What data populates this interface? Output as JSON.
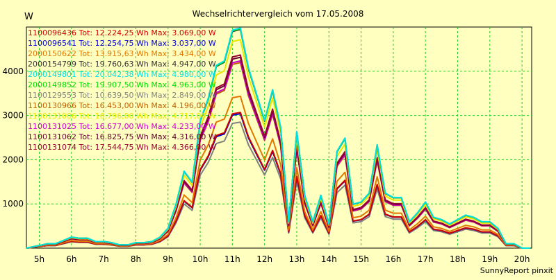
{
  "chart_data": {
    "type": "line",
    "title": "Wechselrichtervergleich vom 17.05.2008",
    "ylabel": "W",
    "xlabel": "",
    "credit": "SunnyReport pinxit",
    "grid": true,
    "legend_placement": "top-left",
    "xlim": [
      4.6,
      20.3
    ],
    "ylim": [
      0,
      5000
    ],
    "x_ticks": [
      5,
      6,
      7,
      8,
      9,
      10,
      11,
      12,
      13,
      14,
      15,
      16,
      17,
      18,
      19,
      20
    ],
    "x_tick_labels": [
      "5h",
      "6h",
      "7h",
      "8h",
      "9h",
      "10h",
      "11h",
      "12h",
      "13h",
      "14h",
      "15h",
      "16h",
      "17h",
      "18h",
      "19h",
      "20h"
    ],
    "y_ticks": [
      1000,
      2000,
      3000,
      4000
    ],
    "y_tick_labels": [
      "1000",
      "2000",
      "3000",
      "4000"
    ],
    "base_profile": {
      "x": [
        4.6,
        5.0,
        5.25,
        5.5,
        5.75,
        6.0,
        6.25,
        6.5,
        6.75,
        7.0,
        7.25,
        7.5,
        7.75,
        8.0,
        8.25,
        8.5,
        8.75,
        9.0,
        9.25,
        9.5,
        9.75,
        10.0,
        10.25,
        10.5,
        10.75,
        11.0,
        11.25,
        11.5,
        11.75,
        12.0,
        12.25,
        12.5,
        12.75,
        13.0,
        13.25,
        13.5,
        13.75,
        14.0,
        14.25,
        14.5,
        14.75,
        15.0,
        15.25,
        15.5,
        15.75,
        16.0,
        16.25,
        16.5,
        16.75,
        17.0,
        17.25,
        17.5,
        17.75,
        18.0,
        18.25,
        18.5,
        18.75,
        19.0,
        19.25,
        19.5,
        19.75,
        20.0,
        20.25
      ],
      "y": [
        0,
        0.012,
        0.02,
        0.02,
        0.035,
        0.05,
        0.045,
        0.045,
        0.03,
        0.03,
        0.025,
        0.015,
        0.015,
        0.025,
        0.025,
        0.03,
        0.05,
        0.09,
        0.2,
        0.35,
        0.3,
        0.58,
        0.68,
        0.83,
        0.85,
        0.99,
        1.0,
        0.82,
        0.7,
        0.58,
        0.72,
        0.55,
        0.12,
        0.53,
        0.24,
        0.12,
        0.24,
        0.11,
        0.44,
        0.5,
        0.2,
        0.21,
        0.25,
        0.47,
        0.25,
        0.23,
        0.23,
        0.12,
        0.16,
        0.21,
        0.14,
        0.13,
        0.11,
        0.13,
        0.15,
        0.14,
        0.12,
        0.12,
        0.09,
        0.02,
        0.02,
        0.0,
        0.0
      ]
    },
    "series": [
      {
        "legend": "1100096436 Tot: 12.224,25 Wh Max: 3.069,00 W",
        "max": 3069,
        "color": "#cc0000"
      },
      {
        "legend": "1100096541 Tot: 12.254,75 Wh Max: 3.037,00 W",
        "max": 3037,
        "color": "#0000cc"
      },
      {
        "legend": "2000150622 Tot: 13.915,63 Wh Max: 3.434,00 W",
        "max": 3434,
        "color": "#e07800"
      },
      {
        "legend": "2000154799 Tot: 19.760,63 Wh Max: 4.947,00 W",
        "max": 4947,
        "color": "#333333"
      },
      {
        "legend": "2000149801 Tot: 20.042,38 Wh Max: 4.980,00 W",
        "max": 4980,
        "color": "#00e0e0"
      },
      {
        "legend": "2000149852 Tot: 19.907,50 Wh Max: 4.963,00 W",
        "max": 4963,
        "color": "#00dd00"
      },
      {
        "legend": "1100129553 Tot: 10.639,50 Wh Max: 2.849,00 W",
        "max": 2849,
        "color": "#808080"
      },
      {
        "legend": "1100130966 Tot: 16.453,00 Wh Max: 4.196,00 W",
        "max": 4196,
        "color": "#c06000"
      },
      {
        "legend": "1100131006 Tot: 16.796,00 Wh Max: 4.717,00 W",
        "max": 4717,
        "color": "#e8e800"
      },
      {
        "legend": "1100131025 Tot: 16.677,00 Wh Max: 4.233,00 W",
        "max": 4233,
        "color": "#cc00cc"
      },
      {
        "legend": "1100131062 Tot: 16.825,75 Wh Max: 4.316,00 W",
        "max": 4316,
        "color": "#660033"
      },
      {
        "legend": "1100131074 Tot: 17.544,75 Wh Max: 4.366,00 W",
        "max": 4366,
        "color": "#990033"
      }
    ]
  }
}
